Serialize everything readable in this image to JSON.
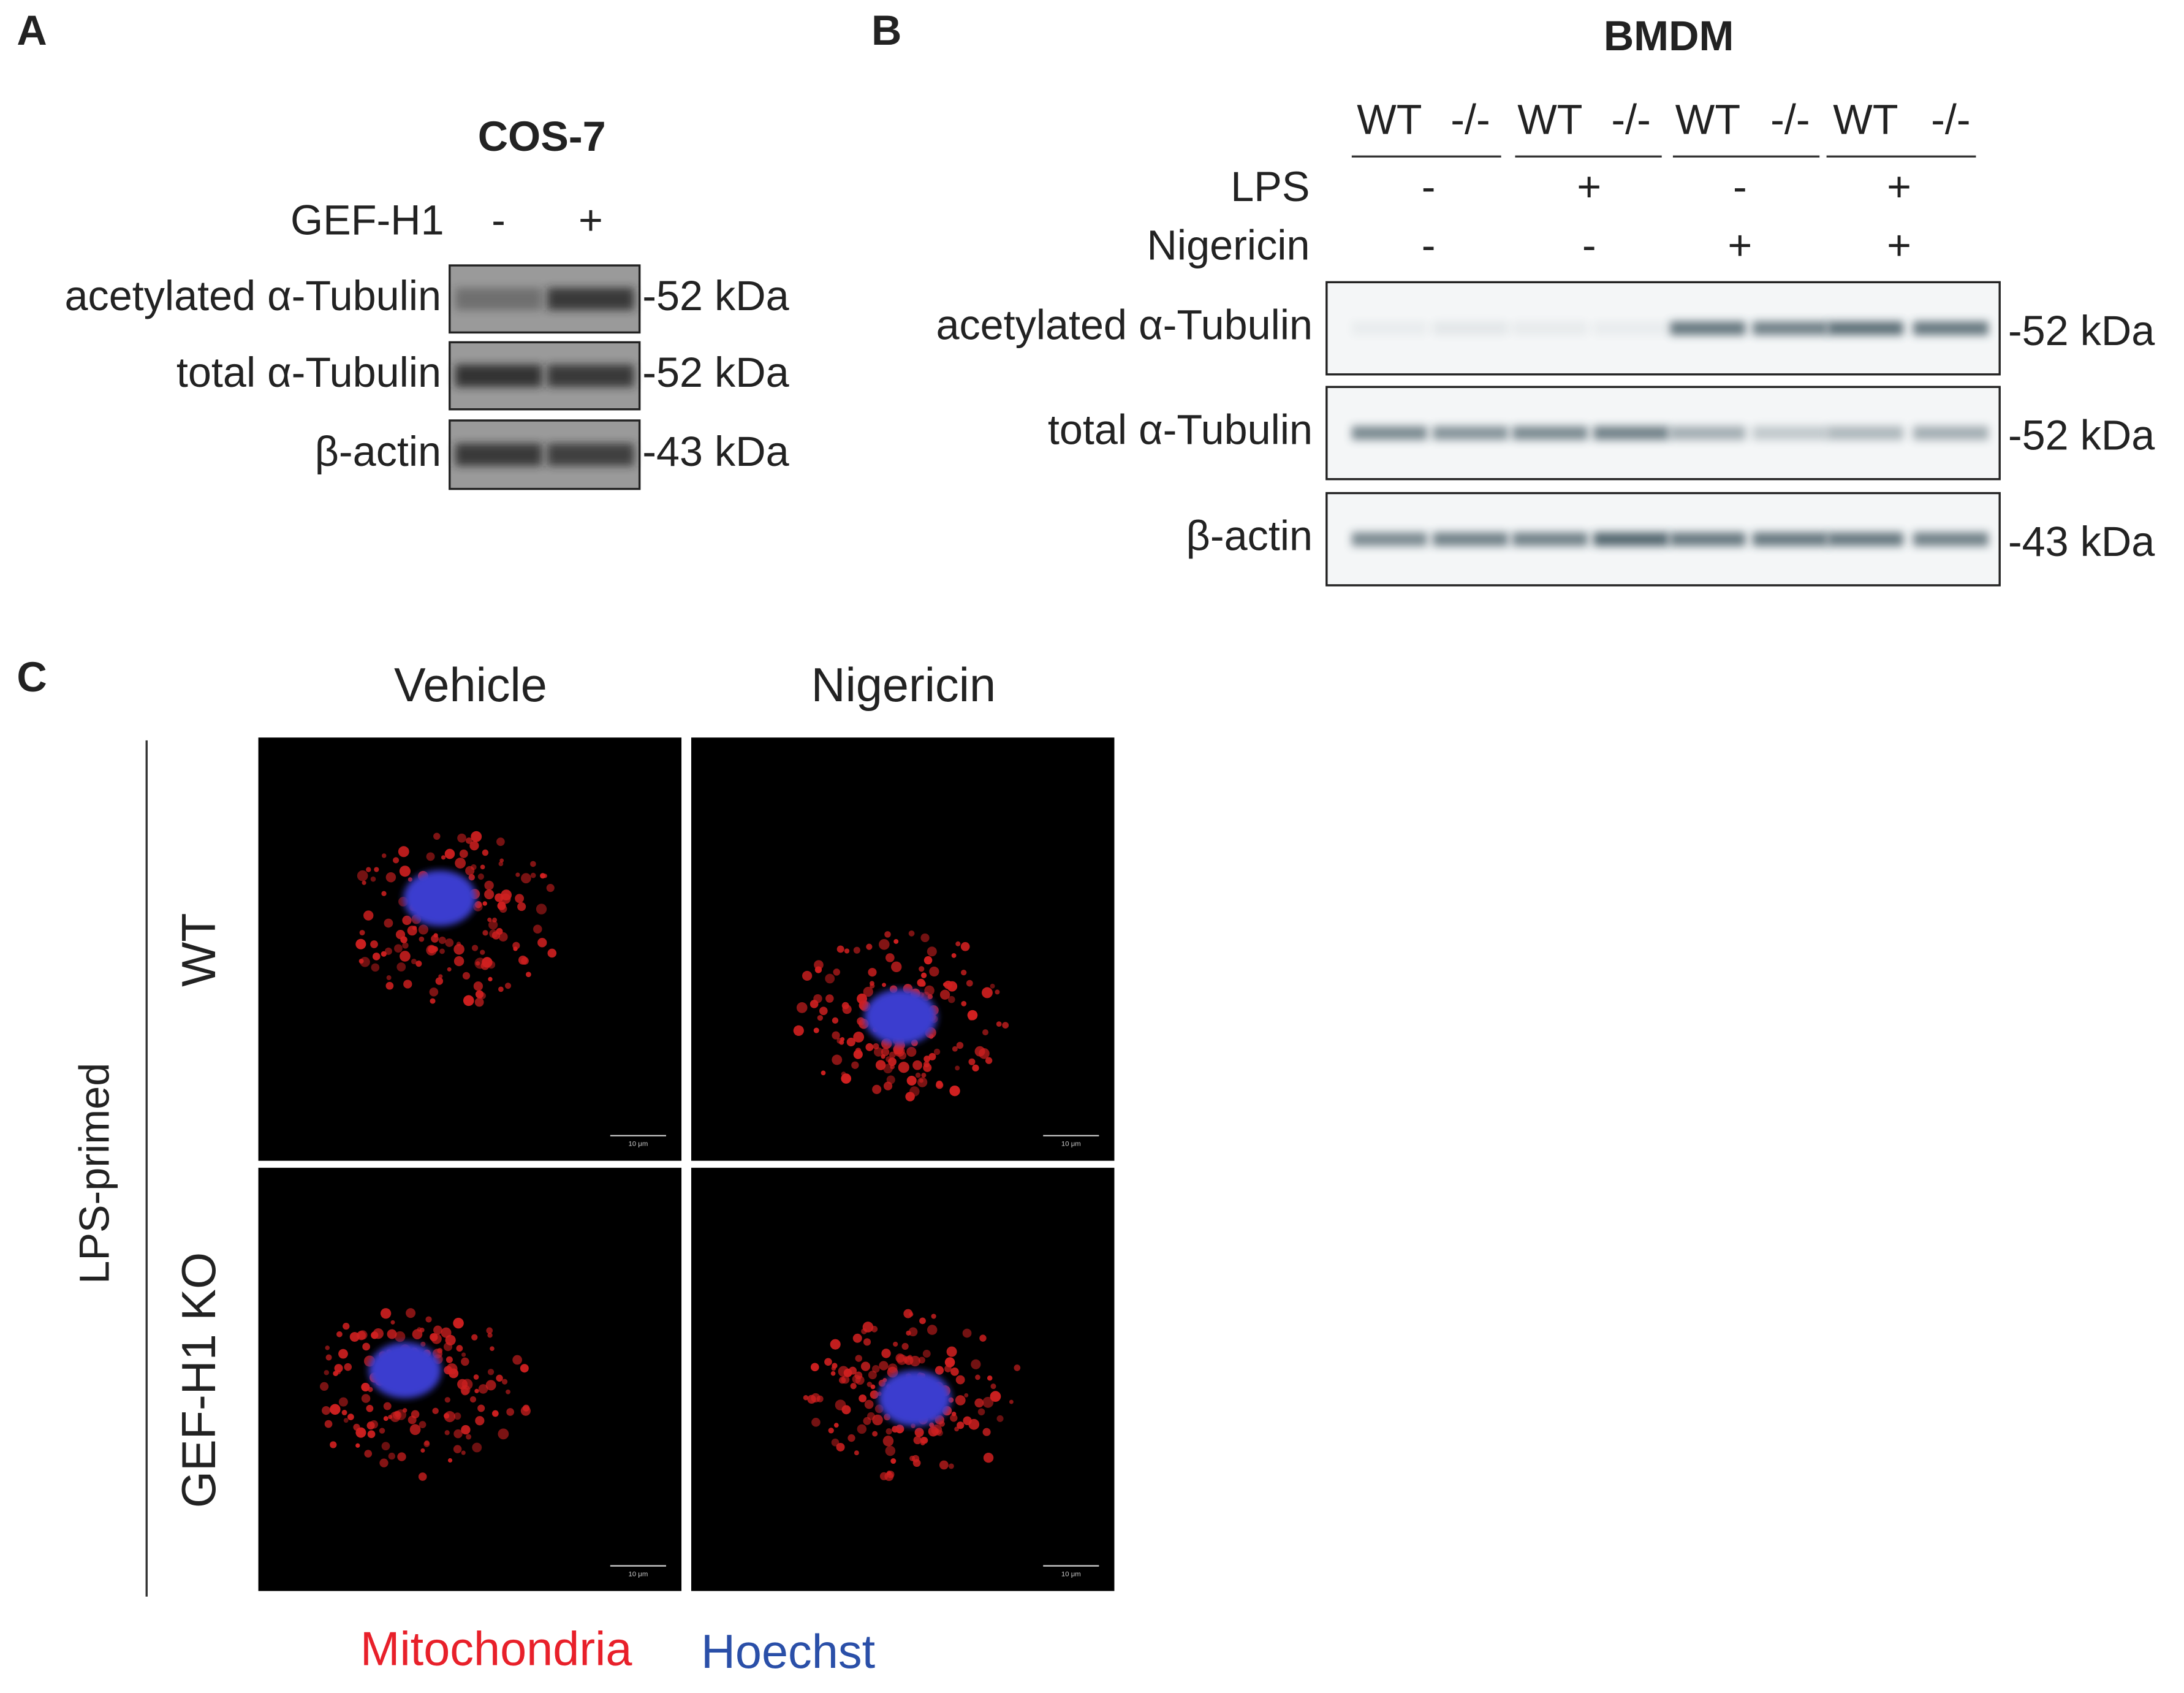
{
  "panel_a": {
    "label": "A",
    "title": "COS-7",
    "condition": "GEF-H1",
    "lanes": [
      "-",
      "+"
    ],
    "rows": [
      "acetylated α-Tubulin",
      "total α-Tubulin",
      "β-actin"
    ],
    "sizes": [
      "-52 kDa",
      "-52 kDa",
      "-43 kDa"
    ]
  },
  "panel_b": {
    "label": "B",
    "title": "BMDM",
    "genotypes": [
      "WT",
      "-/-",
      "WT",
      "-/-",
      "WT",
      "-/-",
      "WT",
      "-/-"
    ],
    "conditions": [
      {
        "name": "LPS",
        "values": [
          "-",
          "+",
          "-",
          "+"
        ]
      },
      {
        "name": "Nigericin",
        "values": [
          "-",
          "-",
          "+",
          "+"
        ]
      }
    ],
    "rows": [
      "acetylated α-Tubulin",
      "total α-Tubulin",
      "β-actin"
    ],
    "sizes": [
      "-52 kDa",
      "-52 kDa",
      "-43 kDa"
    ]
  },
  "panel_c": {
    "label": "C",
    "columns": [
      "Vehicle",
      "Nigericin"
    ],
    "rows": [
      "WT",
      "GEF-H1 KO"
    ],
    "group": "LPS-primed",
    "scale_bar": "10 μm",
    "legend": [
      "Mitochondria",
      "Hoechst"
    ]
  }
}
